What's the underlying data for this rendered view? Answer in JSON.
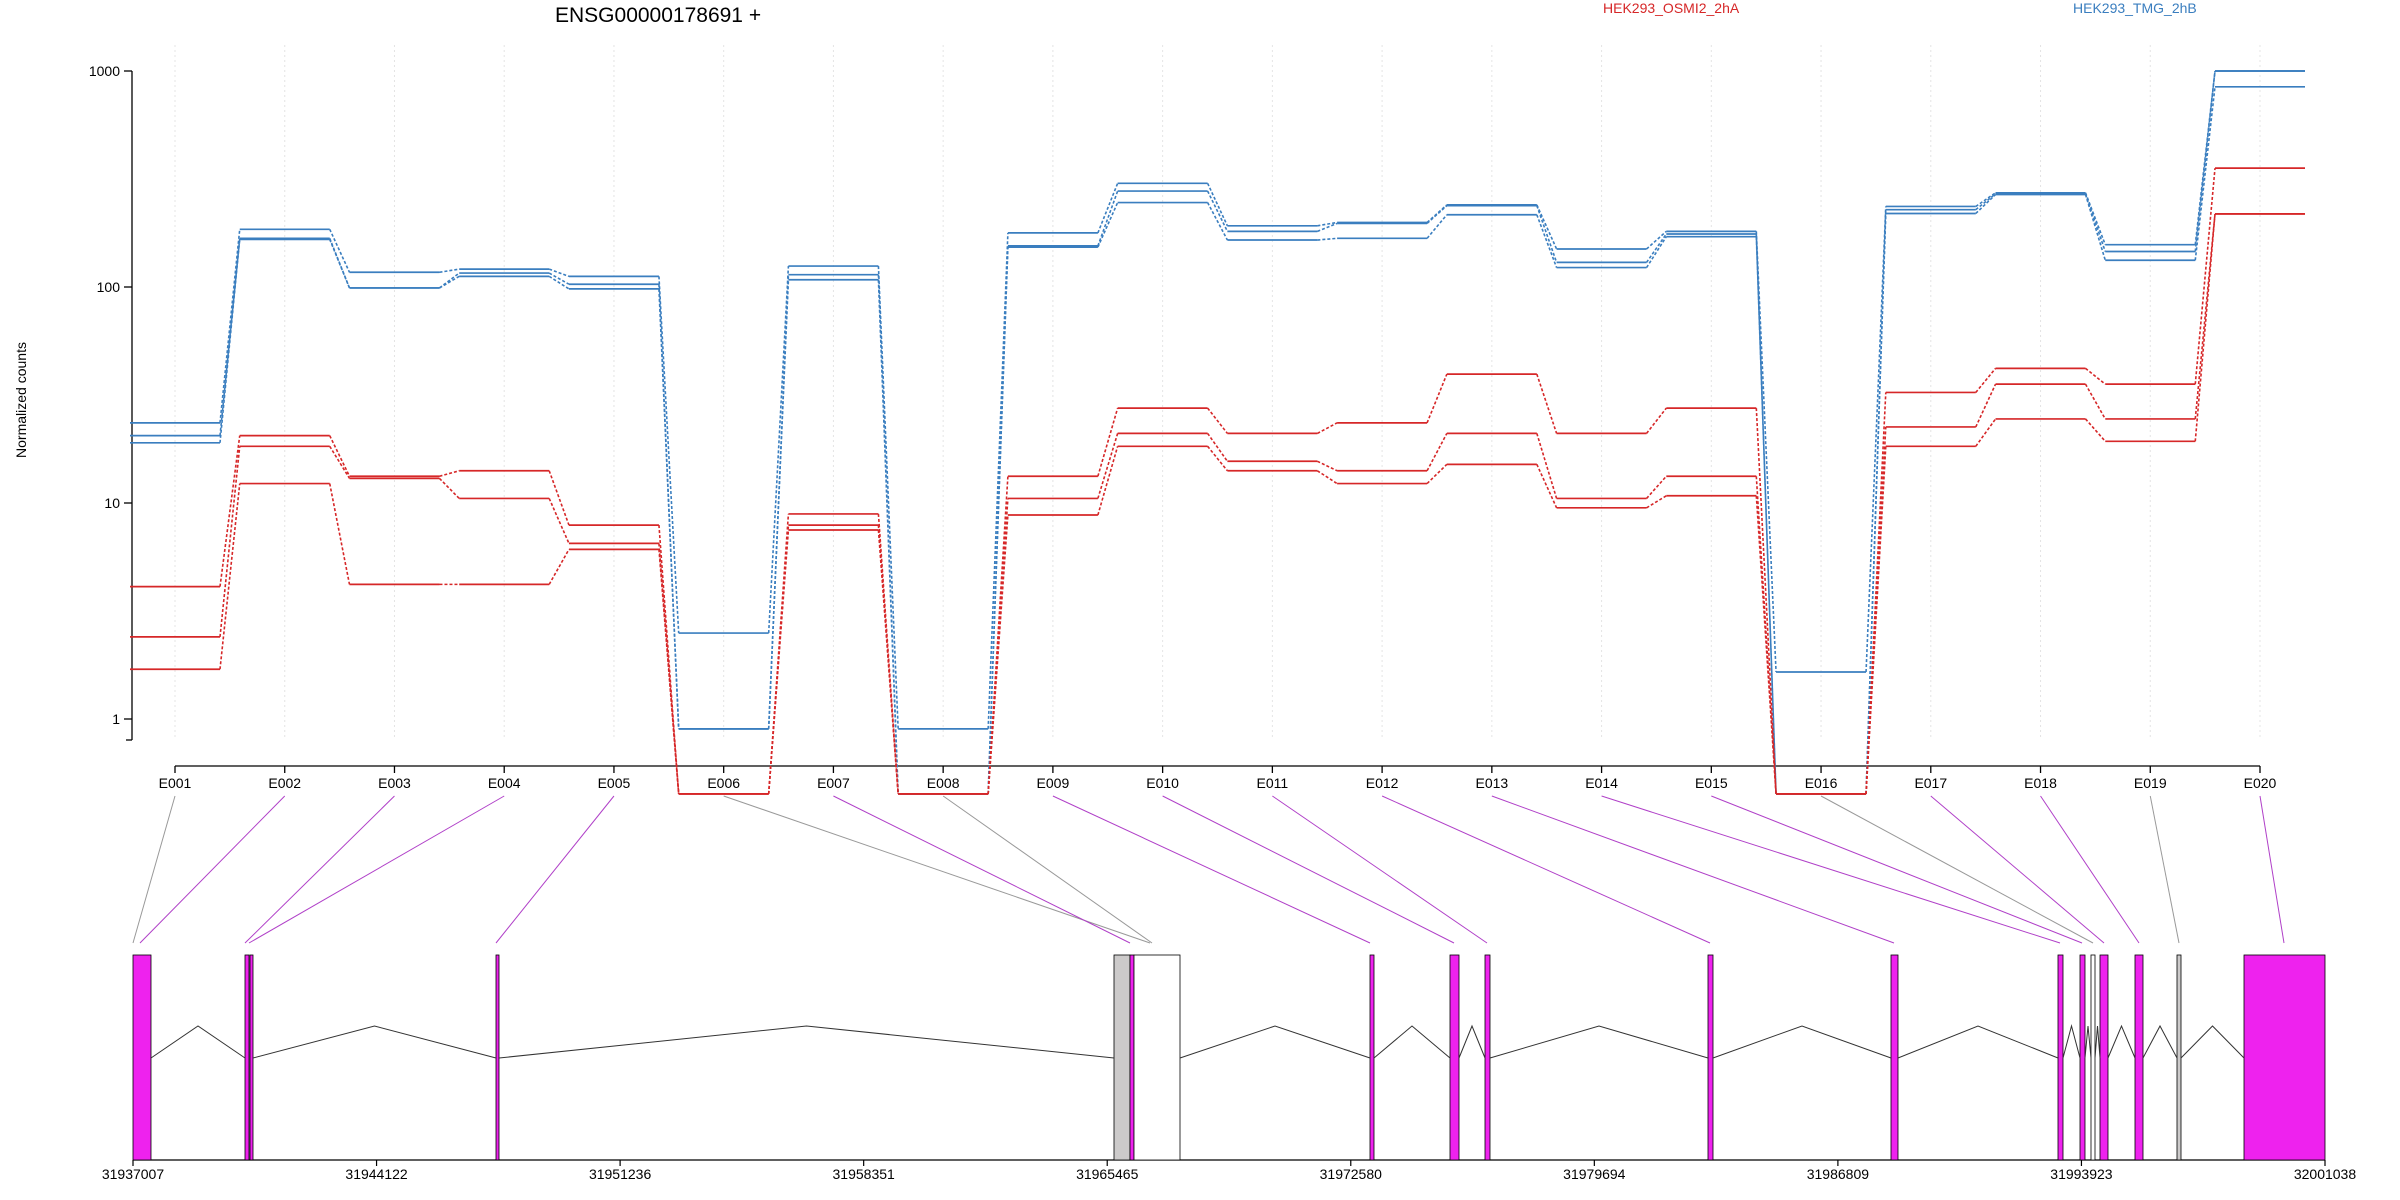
{
  "chart_data": {
    "type": "line",
    "title": "ENSG00000178691 +",
    "ylabel": "Normalized counts",
    "y_scale": "log",
    "yticks": [
      "1000",
      "100",
      "10",
      "1"
    ],
    "grid": "vertical, light",
    "legend_position": "top",
    "categories": [
      "E001",
      "E002",
      "E003",
      "E004",
      "E005",
      "E006",
      "E007",
      "E008",
      "E009",
      "E010",
      "E011",
      "E012",
      "E013",
      "E014",
      "E015",
      "E016",
      "E017",
      "E018",
      "E019",
      "E020"
    ],
    "conditions": [
      {
        "name": "HEK293_OSMI2_2hA",
        "color": "#d62728"
      },
      {
        "name": "HEK293_TMG_2hB",
        "color": "#3a7ebf"
      }
    ],
    "series": [
      {
        "group": 1,
        "values": [
          23.5,
          185,
          117,
          121,
          112,
          2.5,
          125,
          0.9,
          178,
          302,
          192,
          199,
          240,
          150,
          181,
          1.65,
          236,
          273,
          157,
          1000
        ]
      },
      {
        "group": 1,
        "values": [
          20.5,
          168,
          99,
          116,
          103,
          0.9,
          114,
          0.45,
          155,
          278,
          181,
          197,
          238,
          130,
          176,
          0.45,
          228,
          270,
          146,
          1000
        ]
      },
      {
        "group": 1,
        "values": [
          19,
          166,
          99,
          112,
          98,
          0.9,
          108,
          0.45,
          153,
          246,
          165,
          168,
          216,
          123,
          171,
          0.45,
          219,
          268,
          133,
          845
        ]
      },
      {
        "group": 0,
        "values": [
          4.1,
          20.5,
          13.3,
          14.1,
          7.9,
          0.45,
          8.9,
          0.45,
          13.3,
          27.5,
          21,
          23.5,
          39.5,
          21,
          27.5,
          0.45,
          32.5,
          42,
          35.5,
          355
        ]
      },
      {
        "group": 0,
        "values": [
          2.4,
          18.3,
          13,
          10.5,
          6.5,
          0.45,
          7.9,
          0.45,
          10.5,
          21,
          15.6,
          14.1,
          21,
          10.5,
          13.3,
          0.45,
          22.5,
          35.5,
          24.5,
          218
        ]
      },
      {
        "group": 0,
        "values": [
          1.7,
          12.3,
          4.2,
          4.2,
          6.1,
          0.45,
          7.5,
          0.45,
          8.8,
          18.3,
          14.1,
          12.3,
          15.1,
          9.5,
          10.8,
          0.45,
          18.3,
          24.5,
          19.3,
          218
        ]
      }
    ],
    "gene_model": {
      "xticks": [
        "31937007",
        "31944122",
        "31951236",
        "31958351",
        "31965465",
        "31972580",
        "31979694",
        "31986809",
        "31993923",
        "32001038"
      ],
      "exon_color": "#ee22ee",
      "unused_color": "#cccaca"
    }
  }
}
